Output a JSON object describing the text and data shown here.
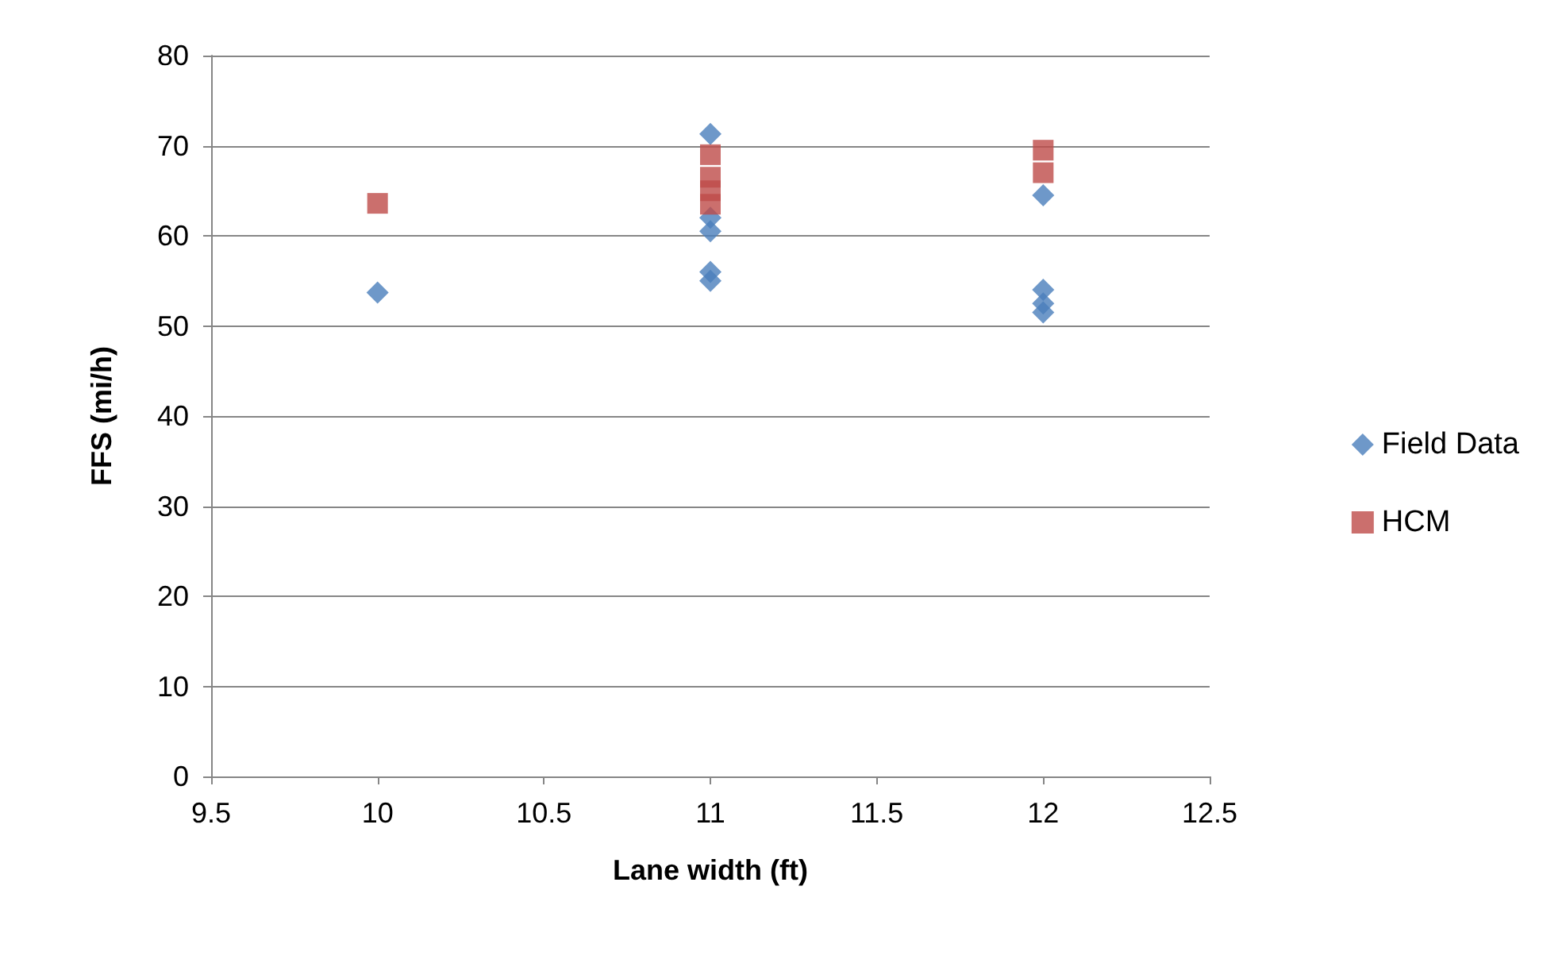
{
  "chart_data": {
    "type": "scatter",
    "xlabel": "Lane width (ft)",
    "ylabel": "FFS (mi/h)",
    "xlim": [
      9.5,
      12.5
    ],
    "xticks": [
      9.5,
      10,
      10.5,
      11,
      11.5,
      12,
      12.5
    ],
    "ylim": [
      0,
      80
    ],
    "yticks": [
      0,
      10,
      20,
      30,
      40,
      50,
      60,
      70,
      80
    ],
    "grid": "y",
    "legend": "right",
    "series": [
      {
        "name": "Field Data",
        "color": "#4a7ebb",
        "marker": "diamond",
        "x": [
          10,
          11,
          11,
          11,
          11,
          11,
          12,
          12,
          12,
          12
        ],
        "values": [
          53.7,
          71.3,
          62,
          60.5,
          56,
          55,
          64.5,
          54,
          52.5,
          51.5
        ]
      },
      {
        "name": "HCM",
        "color": "#be4b48",
        "marker": "square",
        "x": [
          10,
          11,
          11,
          11,
          11,
          12,
          12
        ],
        "values": [
          63.6,
          63.5,
          65,
          66.5,
          69,
          69.5,
          67
        ]
      }
    ]
  }
}
